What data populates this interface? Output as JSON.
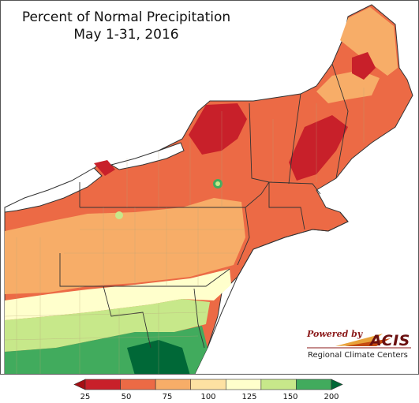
{
  "title": {
    "line1": "Percent of Normal Precipitation",
    "line2": "May 1-31, 2016"
  },
  "logo": {
    "powered_by": "Powered by",
    "brand": "ACIS",
    "subtitle": "Regional Climate Centers"
  },
  "legend": {
    "breaks": [
      "25",
      "50",
      "75",
      "100",
      "125",
      "150",
      "200"
    ],
    "colors": [
      "#c8202a",
      "#ec6a45",
      "#f7ad68",
      "#fde1a2",
      "#ffffcc",
      "#c7e88a",
      "#41ab5d"
    ],
    "under_color": "#a50f15",
    "over_color": "#006837"
  },
  "palette": {
    "water": "#ffffff",
    "ocean_outline": "#333333",
    "border": "#333333",
    "county": "#b8a37a"
  }
}
